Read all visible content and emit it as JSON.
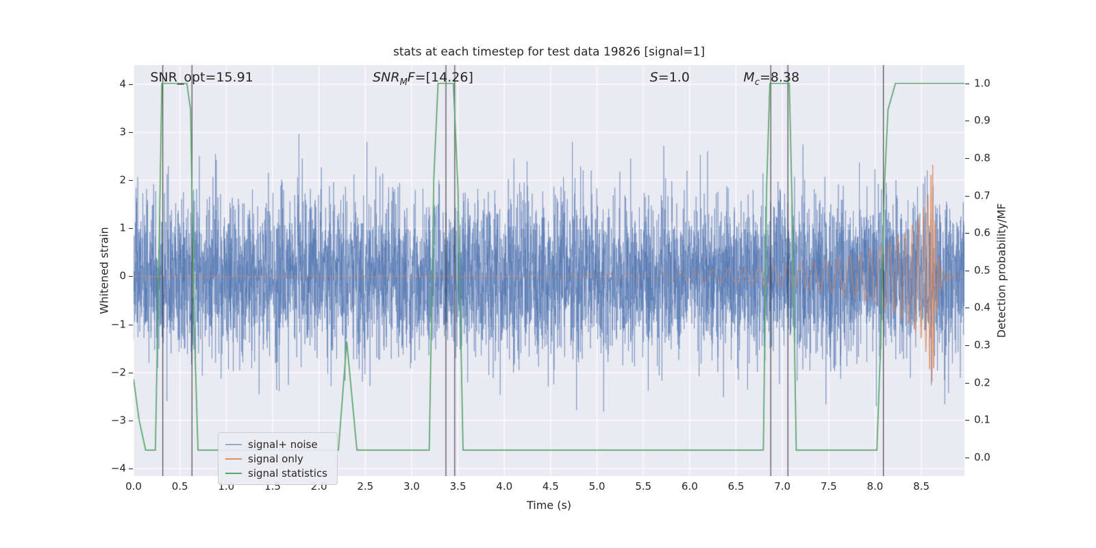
{
  "chart_data": {
    "type": "line",
    "title": "stats at each timestep for test data 19826 [signal=1]",
    "xlabel": "Time (s)",
    "ylabel_left": "Whitened strain",
    "ylabel_right": "Detection probability/MF",
    "xlim": [
      0,
      8.965
    ],
    "ylim_left": [
      -4.16,
      4.4
    ],
    "ylim_right": [
      -0.0495,
      1.049
    ],
    "x_ticks": [
      0,
      0.5,
      1,
      1.5,
      2,
      2.5,
      3,
      3.5,
      4,
      4.5,
      5,
      5.5,
      6,
      6.5,
      7,
      7.5,
      8,
      8.5
    ],
    "y_ticks_left": [
      -4,
      -3,
      -2,
      -1,
      0,
      1,
      2,
      3,
      4
    ],
    "y_ticks_right": [
      0,
      0.1,
      0.2,
      0.3,
      0.4,
      0.5,
      0.6,
      0.7,
      0.8,
      0.9,
      1
    ],
    "grid": true,
    "background_color": "#eaeaf2",
    "grid_color": "#ffffff",
    "annotations": [
      {
        "x": 0.18,
        "segments": [
          {
            "style": "normal",
            "text": "SNR_opt=15.91"
          }
        ]
      },
      {
        "x": 2.58,
        "segments": [
          {
            "style": "italic",
            "text": "SNR"
          },
          {
            "style": "sub",
            "text": "M"
          },
          {
            "style": "italic",
            "text": "F"
          },
          {
            "style": "normal",
            "text": "=[14.26]"
          }
        ]
      },
      {
        "x": 5.57,
        "segments": [
          {
            "style": "italic",
            "text": "S"
          },
          {
            "style": "normal",
            "text": "=1.0"
          }
        ]
      },
      {
        "x": 6.58,
        "segments": [
          {
            "style": "italic",
            "text": "M"
          },
          {
            "style": "sub",
            "text": "c"
          },
          {
            "style": "normal",
            "text": "=8.38"
          }
        ]
      }
    ],
    "vlines": {
      "x": [
        0.315,
        0.63,
        3.37,
        3.465,
        6.875,
        7.06,
        8.09
      ],
      "color": "#2e2e2e",
      "linewidth": 1.2
    },
    "legend": {
      "location": "lower left",
      "items": [
        {
          "label": "signal+ noise"
        },
        {
          "label": "signal only"
        },
        {
          "label": "signal statistics"
        }
      ]
    },
    "series": [
      {
        "name": "signal+ noise",
        "kind": "gaussian_noise",
        "axis": "left",
        "color": "#4c72b0",
        "alpha": 0.5,
        "sigma": 0.82,
        "n_samples": 6000,
        "seed": 19826
      },
      {
        "name": "signal only",
        "kind": "chirp",
        "axis": "left",
        "color": "#dd8452",
        "alpha": 0.9,
        "t_merger": 8.62,
        "f_scale": 8,
        "envelope": [
          [
            0,
            0.013
          ],
          [
            3.5,
            0.018
          ],
          [
            4.2,
            0.028
          ],
          [
            4.8,
            0.045
          ],
          [
            5.4,
            0.07
          ],
          [
            6.0,
            0.11
          ],
          [
            6.5,
            0.16
          ],
          [
            7.0,
            0.23
          ],
          [
            7.4,
            0.32
          ],
          [
            7.8,
            0.46
          ],
          [
            8.1,
            0.65
          ],
          [
            8.35,
            0.95
          ],
          [
            8.5,
            1.3
          ],
          [
            8.57,
            1.7
          ],
          [
            8.6,
            2.1
          ],
          [
            8.625,
            2.35
          ],
          [
            8.645,
            1.2
          ],
          [
            8.68,
            0.4
          ],
          [
            8.75,
            0.12
          ],
          [
            8.85,
            0.04
          ],
          [
            8.965,
            0.02
          ]
        ]
      },
      {
        "name": "signal statistics",
        "kind": "piecewise_linear",
        "axis": "right",
        "color": "#55a868",
        "alpha": 1,
        "points": [
          [
            0,
            0.21
          ],
          [
            0.06,
            0.1
          ],
          [
            0.13,
            0.02
          ],
          [
            0.235,
            0.02
          ],
          [
            0.275,
            0.55
          ],
          [
            0.305,
            1.0
          ],
          [
            0.575,
            1.0
          ],
          [
            0.615,
            0.93
          ],
          [
            0.655,
            0.35
          ],
          [
            0.695,
            0.02
          ],
          [
            2.21,
            0.02
          ],
          [
            2.3,
            0.31
          ],
          [
            2.41,
            0.02
          ],
          [
            3.19,
            0.02
          ],
          [
            3.24,
            0.75
          ],
          [
            3.285,
            1.0
          ],
          [
            3.45,
            1.0
          ],
          [
            3.5,
            0.72
          ],
          [
            3.555,
            0.02
          ],
          [
            6.795,
            0.02
          ],
          [
            6.83,
            0.72
          ],
          [
            6.865,
            1.0
          ],
          [
            7.075,
            1.0
          ],
          [
            7.11,
            0.62
          ],
          [
            7.15,
            0.02
          ],
          [
            8.02,
            0.02
          ],
          [
            8.06,
            0.3
          ],
          [
            8.1,
            0.72
          ],
          [
            8.14,
            0.93
          ],
          [
            8.22,
            1.0
          ],
          [
            8.965,
            1.0
          ]
        ]
      }
    ]
  }
}
